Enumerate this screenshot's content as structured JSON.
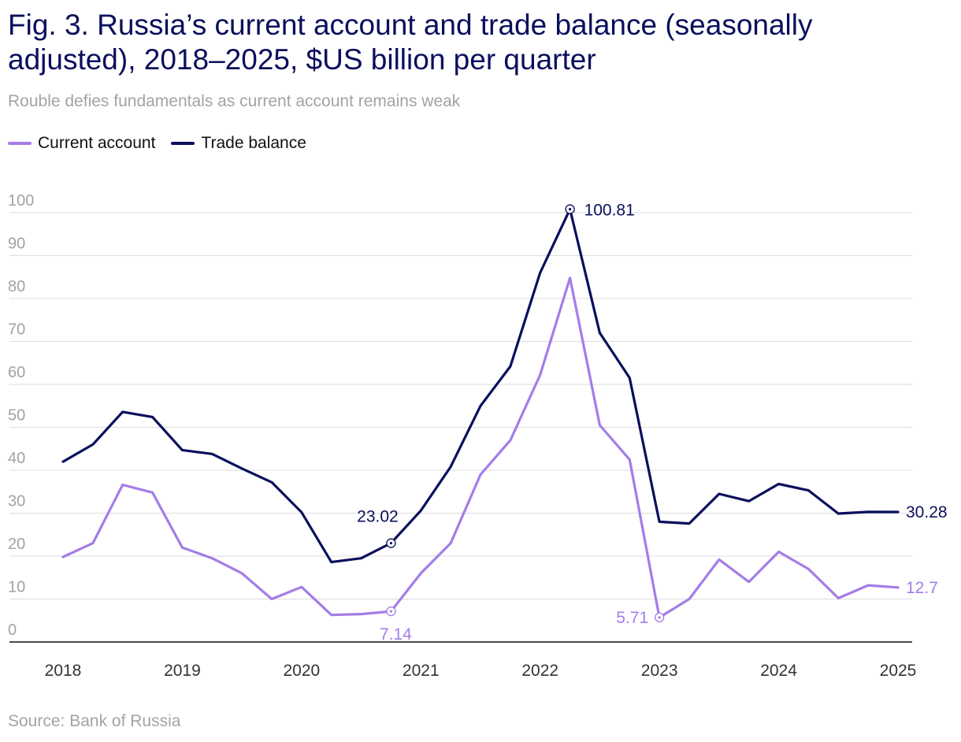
{
  "title": "Fig. 3. Russia’s current account and trade balance (seasonally adjusted), 2018–2025, $US billion per quarter",
  "subtitle": "Rouble defies fundamentals as current account remains weak",
  "source": "Source: Bank of Russia",
  "colors": {
    "current_account": "#a37de8",
    "trade_balance": "#0a0f5c",
    "grid": "#dddddd",
    "axis": "#111111",
    "tick": "#a3a3a3"
  },
  "legend": [
    {
      "name": "Current account",
      "color": "#a37de8"
    },
    {
      "name": "Trade balance",
      "color": "#0a0f5c"
    }
  ],
  "chart_data": {
    "type": "line",
    "x": [
      2018.0,
      2018.25,
      2018.5,
      2018.75,
      2019.0,
      2019.25,
      2019.5,
      2019.75,
      2020.0,
      2020.25,
      2020.5,
      2020.75,
      2021.0,
      2021.25,
      2021.5,
      2021.75,
      2022.0,
      2022.25,
      2022.5,
      2022.75,
      2023.0,
      2023.25,
      2023.5,
      2023.75,
      2024.0,
      2024.25,
      2024.5,
      2024.75,
      2025.0
    ],
    "series": [
      {
        "name": "Current account",
        "values": [
          19.8,
          23.0,
          36.6,
          34.8,
          22.0,
          19.5,
          16.0,
          10.0,
          12.8,
          6.3,
          6.5,
          7.14,
          16.0,
          23.0,
          39.0,
          47.0,
          62.2,
          84.8,
          50.5,
          42.5,
          5.71,
          10.0,
          19.2,
          14.0,
          21.0,
          17.0,
          10.2,
          13.2,
          12.7
        ]
      },
      {
        "name": "Trade balance",
        "values": [
          42.0,
          46.0,
          53.6,
          52.4,
          44.7,
          43.8,
          40.4,
          37.2,
          30.2,
          18.6,
          19.5,
          23.02,
          30.6,
          40.8,
          55.0,
          64.2,
          86.0,
          100.81,
          72.0,
          61.5,
          28.0,
          27.6,
          34.5,
          32.8,
          36.8,
          35.3,
          29.9,
          30.3,
          30.28
        ]
      }
    ],
    "annotations": [
      {
        "series": "Trade balance",
        "x": 2022.25,
        "label": "100.81"
      },
      {
        "series": "Trade balance",
        "x": 2020.75,
        "label": "23.02"
      },
      {
        "series": "Trade balance",
        "x": 2025.0,
        "label": "30.28"
      },
      {
        "series": "Current account",
        "x": 2020.75,
        "label": "7.14"
      },
      {
        "series": "Current account",
        "x": 2023.0,
        "label": "5.71"
      },
      {
        "series": "Current account",
        "x": 2025.0,
        "label": "12.7"
      }
    ],
    "xticks": [
      "2018",
      "2019",
      "2020",
      "2021",
      "2022",
      "2023",
      "2024",
      "2025"
    ],
    "yticks": [
      "0",
      "10",
      "20",
      "30",
      "40",
      "50",
      "60",
      "70",
      "80",
      "90",
      "100"
    ],
    "xlim": [
      2018,
      2025
    ],
    "ylim": [
      0,
      100
    ],
    "xlabel": "",
    "ylabel": "",
    "grid": true
  }
}
